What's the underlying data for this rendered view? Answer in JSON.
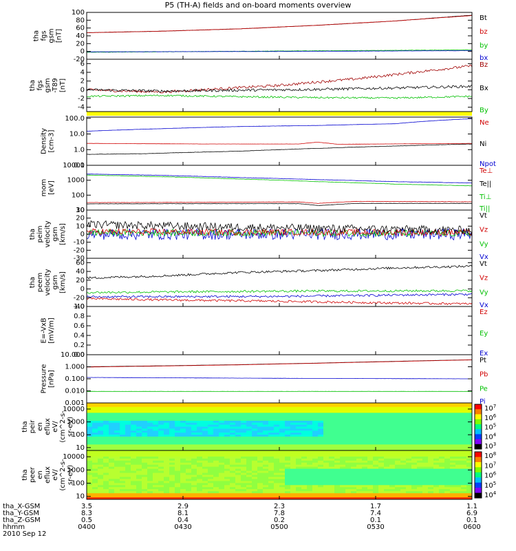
{
  "title": "P5 (TH-A) fields and on-board moments overview",
  "chart_data": [
    {
      "type": "line",
      "ylabel": [
        "tha",
        "fgs",
        "gsm",
        "[nT]"
      ],
      "ylim": [
        -20,
        100
      ],
      "yticks": [
        100,
        80,
        60,
        40,
        20,
        0,
        -20
      ],
      "ytick_labels": [
        "100",
        "80",
        "60",
        "40",
        "20",
        "0",
        "-20"
      ],
      "legend": [
        {
          "name": "Bt",
          "color": "#000000"
        },
        {
          "name": "bz",
          "color": "#d00000"
        },
        {
          "name": "by",
          "color": "#00c000"
        },
        {
          "name": "bx",
          "color": "#0000d0"
        }
      ],
      "series": [
        {
          "name": "Bt",
          "color": "#000000",
          "x": [
            0,
            0.2,
            0.4,
            0.6,
            0.8,
            1
          ],
          "y": [
            48,
            52,
            58,
            67,
            78,
            93
          ],
          "noise": 0.3
        },
        {
          "name": "bz",
          "color": "#d00000",
          "x": [
            0,
            0.2,
            0.4,
            0.6,
            0.8,
            1
          ],
          "y": [
            48,
            52,
            58,
            67,
            78,
            92
          ],
          "noise": 0.3
        },
        {
          "name": "by",
          "color": "#00c000",
          "x": [
            0,
            0.5,
            1
          ],
          "y": [
            -2,
            1,
            4
          ],
          "noise": 0.4
        },
        {
          "name": "bx",
          "color": "#0000d0",
          "x": [
            0,
            0.5,
            1
          ],
          "y": [
            -1,
            0,
            2
          ],
          "noise": 0.3
        }
      ]
    },
    {
      "type": "line",
      "ylabel": [
        "tha",
        "fgs",
        "gsm",
        "-T89",
        "[nT]"
      ],
      "ylim": [
        -5,
        7
      ],
      "yticks": [
        6,
        4,
        2,
        0,
        -2,
        -4
      ],
      "ytick_labels": [
        "6",
        "4",
        "2",
        "0",
        "-2",
        "-4"
      ],
      "legend": [
        {
          "name": "Bz",
          "color": "#a00000"
        },
        {
          "name": "Bx",
          "color": "#000000"
        },
        {
          "name": "By",
          "color": "#00c000"
        }
      ],
      "series": [
        {
          "name": "Bz",
          "color": "#a00000",
          "x": [
            0,
            0.1,
            0.2,
            0.3,
            0.4,
            0.5,
            0.6,
            0.7,
            0.8,
            0.9,
            1
          ],
          "y": [
            0,
            -0.3,
            -0.5,
            0,
            0.5,
            1,
            1.8,
            2.5,
            3.5,
            4.5,
            5.5
          ],
          "noise": 0.3
        },
        {
          "name": "Bx",
          "color": "#000000",
          "x": [
            0,
            0.2,
            0.4,
            0.6,
            0.8,
            1
          ],
          "y": [
            0,
            -0.3,
            -0.1,
            0.1,
            0.4,
            0.8
          ],
          "noise": 0.3
        },
        {
          "name": "By",
          "color": "#00c000",
          "x": [
            0,
            0.2,
            0.4,
            0.6,
            0.8,
            1
          ],
          "y": [
            -1.5,
            -1.3,
            -1.6,
            -1.8,
            -1.9,
            -1.5
          ],
          "noise": 0.2
        }
      ]
    },
    {
      "type": "line",
      "ylabel": [
        "Density",
        "[cm-3]"
      ],
      "scale": "log",
      "ylim": [
        0.1,
        120
      ],
      "yticks": [
        100,
        10,
        1,
        0.1
      ],
      "ytick_labels": [
        "100.0",
        "10.0",
        "1.0",
        "0.1"
      ],
      "legend": [
        {
          "name": "Ne",
          "color": "#d00000"
        },
        {
          "name": "Ni",
          "color": "#000000"
        },
        {
          "name": "Npot",
          "color": "#0000d0"
        }
      ],
      "series": [
        {
          "name": "Npot",
          "color": "#0000d0",
          "x": [
            0,
            0.2,
            0.4,
            0.6,
            0.8,
            1
          ],
          "y": [
            15,
            22,
            30,
            35,
            45,
            95
          ],
          "noise": 0.01
        },
        {
          "name": "Ne",
          "color": "#d00000",
          "x": [
            0,
            0.3,
            0.55,
            0.6,
            0.65,
            1
          ],
          "y": [
            2.5,
            2.3,
            2.3,
            3,
            2.2,
            2.5
          ],
          "noise": 0.01
        },
        {
          "name": "Ni",
          "color": "#000000",
          "x": [
            0,
            0.15,
            0.4,
            0.6,
            0.8,
            1
          ],
          "y": [
            0.5,
            0.55,
            0.8,
            1.2,
            1.7,
            2.3
          ],
          "noise": 0.02
        }
      ]
    },
    {
      "type": "line",
      "ylabel": [
        "mom",
        "[eV]"
      ],
      "scale": "log",
      "ylim": [
        10,
        10000
      ],
      "yticks": [
        10000,
        1000,
        100,
        10
      ],
      "ytick_labels": [
        "10000",
        "1000",
        "100",
        "10"
      ],
      "legend": [
        {
          "name": "Te⊥",
          "color": "#d00000"
        },
        {
          "name": "Te||",
          "color": "#000000"
        },
        {
          "name": "Ti⊥",
          "color": "#00c000"
        },
        {
          "name": "Ti||",
          "color": "#00c000"
        }
      ],
      "series": [
        {
          "name": "Ti⊥",
          "color": "#0000d0",
          "x": [
            0,
            0.2,
            0.4,
            0.6,
            0.8,
            1
          ],
          "y": [
            2600,
            2100,
            1500,
            1100,
            800,
            650
          ],
          "noise": 0.02
        },
        {
          "name": "Ti||",
          "color": "#00c000",
          "x": [
            0,
            0.2,
            0.4,
            0.6,
            0.8,
            1
          ],
          "y": [
            2200,
            1700,
            1200,
            800,
            550,
            420
          ],
          "noise": 0.02
        },
        {
          "name": "Te⊥",
          "color": "#d00000",
          "x": [
            0,
            0.3,
            0.55,
            0.6,
            0.7,
            1
          ],
          "y": [
            32,
            33,
            35,
            28,
            38,
            36
          ],
          "noise": 0.02
        },
        {
          "name": "Te||",
          "color": "#000000",
          "x": [
            0,
            0.3,
            0.55,
            0.6,
            0.7,
            1
          ],
          "y": [
            26,
            27,
            27,
            20,
            28,
            28
          ],
          "noise": 0.02
        }
      ]
    },
    {
      "type": "line",
      "ylabel": [
        "tha",
        "peim",
        "velocity",
        "gsm",
        "[km/s]"
      ],
      "ylim": [
        -30,
        30
      ],
      "yticks": [
        30,
        20,
        10,
        0,
        -10,
        -20,
        -30
      ],
      "ytick_labels": [
        "30",
        "20",
        "10",
        "0",
        "-10",
        "-20",
        "-30"
      ],
      "legend": [
        {
          "name": "Vt",
          "color": "#000000"
        },
        {
          "name": "Vz",
          "color": "#d00000"
        },
        {
          "name": "Vy",
          "color": "#00c000"
        },
        {
          "name": "Vx",
          "color": "#0000d0"
        }
      ],
      "series": [
        {
          "name": "Vx",
          "color": "#0000d0",
          "x": [
            0,
            1
          ],
          "y": [
            0,
            0
          ],
          "noise": 7
        },
        {
          "name": "Vy",
          "color": "#00c000",
          "x": [
            0,
            1
          ],
          "y": [
            2,
            1
          ],
          "noise": 4
        },
        {
          "name": "Vz",
          "color": "#d00000",
          "x": [
            0,
            1
          ],
          "y": [
            3,
            2
          ],
          "noise": 4
        },
        {
          "name": "Vt",
          "color": "#000000",
          "x": [
            0,
            0.5,
            1
          ],
          "y": [
            12,
            8,
            5
          ],
          "noise": 5
        }
      ]
    },
    {
      "type": "line",
      "ylabel": [
        "tha",
        "peem",
        "velocity",
        "gsm",
        "[km/s]"
      ],
      "ylim": [
        -40,
        70
      ],
      "yticks": [
        60,
        40,
        20,
        0,
        -20,
        -40
      ],
      "ytick_labels": [
        "60",
        "40",
        "20",
        "0",
        "-20",
        "-40"
      ],
      "legend": [
        {
          "name": "Vt",
          "color": "#000000"
        },
        {
          "name": "Vz",
          "color": "#d00000"
        },
        {
          "name": "Vy",
          "color": "#00c000"
        },
        {
          "name": "Vx",
          "color": "#0000d0"
        }
      ],
      "series": [
        {
          "name": "Vt",
          "color": "#000000",
          "x": [
            0,
            0.2,
            0.4,
            0.6,
            0.8,
            1
          ],
          "y": [
            25,
            30,
            38,
            42,
            48,
            52
          ],
          "noise": 2.5
        },
        {
          "name": "Vy",
          "color": "#00c000",
          "x": [
            0,
            0.5,
            1
          ],
          "y": [
            -8,
            -5,
            -4
          ],
          "noise": 2.5
        },
        {
          "name": "Vx",
          "color": "#0000d0",
          "x": [
            0,
            0.5,
            1
          ],
          "y": [
            -18,
            -17,
            -12
          ],
          "noise": 2.5
        },
        {
          "name": "Vz",
          "color": "#d00000",
          "x": [
            0,
            0.2,
            0.5,
            0.8,
            1
          ],
          "y": [
            -22,
            -25,
            -28,
            -32,
            -34
          ],
          "noise": 2.5
        }
      ]
    },
    {
      "type": "line",
      "ylabel": [
        "E=-VxB",
        "[mV/m]"
      ],
      "ylim": [
        0,
        1
      ],
      "yticks": [
        1.0,
        0.8,
        0.6,
        0.4,
        0.2,
        0.0
      ],
      "ytick_labels": [
        "1.0",
        "0.8",
        "0.6",
        "0.4",
        "0.2",
        "0.0"
      ],
      "legend": [
        {
          "name": "Ez",
          "color": "#d00000"
        },
        {
          "name": "Ey",
          "color": "#00c000"
        },
        {
          "name": "Ex",
          "color": "#0000d0"
        }
      ],
      "series": []
    },
    {
      "type": "line",
      "ylabel": [
        "Pressure",
        "[nPa]"
      ],
      "scale": "log",
      "ylim": [
        0.001,
        10
      ],
      "yticks": [
        10,
        1,
        0.1,
        0.01,
        0.001
      ],
      "ytick_labels": [
        "10.000",
        "1.000",
        "0.100",
        "0.010",
        "0.001"
      ],
      "legend": [
        {
          "name": "Pt",
          "color": "#000000"
        },
        {
          "name": "Pb",
          "color": "#d00000"
        },
        {
          "name": "Pe",
          "color": "#00c000"
        },
        {
          "name": "Pi",
          "color": "#0000d0"
        }
      ],
      "series": [
        {
          "name": "Pt",
          "color": "#000000",
          "x": [
            0,
            0.2,
            0.4,
            0.6,
            0.8,
            1
          ],
          "y": [
            1.0,
            1.2,
            1.5,
            2.0,
            2.8,
            3.8
          ],
          "noise": 0.005
        },
        {
          "name": "Pb",
          "color": "#d00000",
          "x": [
            0,
            0.2,
            0.4,
            0.6,
            0.8,
            1
          ],
          "y": [
            0.95,
            1.15,
            1.45,
            1.95,
            2.7,
            3.7
          ],
          "noise": 0.005
        },
        {
          "name": "Pi",
          "color": "#0000d0",
          "x": [
            0,
            0.5,
            1
          ],
          "y": [
            0.13,
            0.11,
            0.1
          ],
          "noise": 0.01
        },
        {
          "name": "Pe",
          "color": "#00c000",
          "x": [
            0,
            0.5,
            1
          ],
          "y": [
            0.009,
            0.009,
            0.009
          ],
          "noise": 0.01
        }
      ]
    },
    {
      "type": "heatmap",
      "ylabel": [
        "tha",
        "peir",
        "en",
        "eflux",
        "eV/",
        "(cm^2-s-",
        "sr-eV)"
      ],
      "scale": "log",
      "ylim": [
        6,
        30000
      ],
      "yticks": [
        10000,
        1000,
        100,
        10
      ],
      "ytick_labels": [
        "10000",
        "1000",
        "100",
        "10"
      ],
      "colorbar_ticks": [
        "10^7",
        "10^6",
        "10^5",
        "10^4",
        "10^3"
      ]
    },
    {
      "type": "heatmap",
      "ylabel": [
        "tha",
        "peer",
        "en",
        "eflux",
        "eV/",
        "(cm^2-s-",
        "sr-eV)"
      ],
      "scale": "log",
      "ylim": [
        6,
        30000
      ],
      "yticks": [
        10000,
        1000,
        100,
        10
      ],
      "ytick_labels": [
        "10000",
        "1000",
        "100",
        "10"
      ],
      "colorbar_ticks": [
        "10^8",
        "10^7",
        "10^6",
        "10^5",
        "10^4"
      ]
    }
  ],
  "bottom_axis": {
    "row_labels": [
      "tha_X-GSM",
      "tha_Y-GSM",
      "tha_Z-GSM",
      "hhmm",
      "2010 Sep 12"
    ],
    "columns": [
      [
        "3.5",
        "8.3",
        "0.5",
        "0400"
      ],
      [
        "2.9",
        "8.1",
        "0.4",
        "0430"
      ],
      [
        "2.3",
        "7.8",
        "0.2",
        "0500"
      ],
      [
        "1.7",
        "7.4",
        "0.1",
        "0530"
      ],
      [
        "1.1",
        "6.9",
        "0.1",
        "0600"
      ]
    ]
  }
}
